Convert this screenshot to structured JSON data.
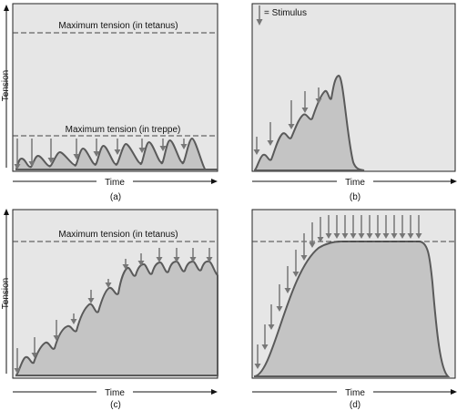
{
  "y_axis_label": "Tension",
  "x_axis_label": "Time",
  "colors": {
    "panel_bg": "#e6e6e6",
    "curve_fill": "#c4c4c4",
    "curve_stroke": "#5a5a5a",
    "arrow": "#777777",
    "dashed_line": "#444444"
  },
  "panels": [
    {
      "caption": "(a)",
      "annotations": [
        "Maximum tension (in tetanus)",
        "Maximum tension (in treppe)"
      ],
      "description_marks": "nine arrows"
    },
    {
      "caption": "(b)",
      "annotations": [
        "= Stimulus"
      ]
    },
    {
      "caption": "(c)",
      "annotations": [
        "Maximum tension (in tetanus)"
      ]
    },
    {
      "caption": "(d)",
      "annotations": []
    }
  ]
}
